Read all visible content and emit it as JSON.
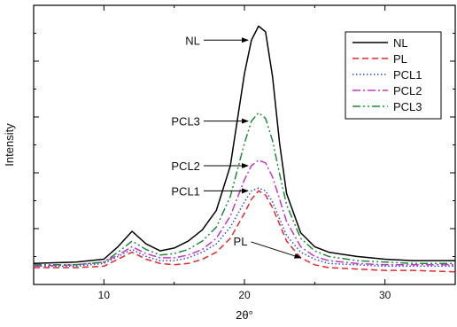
{
  "chart_data": {
    "type": "line",
    "xlabel": "2θ°",
    "ylabel": "Intensity",
    "xlim": [
      5,
      35
    ],
    "ylim": [
      0,
      100
    ],
    "x_ticks": [
      10,
      20,
      30
    ],
    "x_tick_labels": [
      "10",
      "20",
      "30"
    ],
    "y_tick_labels_shown": false,
    "grid": false,
    "legend_position": "top-right",
    "legend": [
      "NL",
      "PL",
      "PCL1",
      "PCL2",
      "PCL3"
    ],
    "series": [
      {
        "name": "NL",
        "color": "#000000",
        "dash": "solid",
        "x": [
          5,
          8,
          10,
          11,
          12,
          13,
          14,
          15,
          16,
          17,
          18,
          19,
          20,
          20.5,
          21,
          21.5,
          22,
          22.5,
          23,
          24,
          25,
          26,
          28,
          30,
          32,
          35
        ],
        "y": [
          5,
          5.5,
          6.5,
          11,
          16.5,
          12,
          9.5,
          10.5,
          13,
          17,
          24,
          40,
          73,
          85,
          90,
          88,
          72,
          48,
          30,
          16,
          11,
          9,
          7.5,
          6.5,
          6,
          6
        ]
      },
      {
        "name": "PL",
        "color": "#e8262d",
        "dash": "7,4",
        "x": [
          5,
          8,
          10,
          11,
          12,
          13,
          14,
          15,
          16,
          17,
          18,
          19,
          20,
          20.5,
          21,
          21.5,
          22,
          22.5,
          23,
          24,
          25,
          26,
          28,
          30,
          32,
          35
        ],
        "y": [
          3.5,
          3.5,
          4,
          6.5,
          9,
          6.5,
          5,
          4.5,
          5,
          6.5,
          9,
          14,
          23,
          28,
          31,
          29.5,
          25,
          19,
          13,
          7,
          4.5,
          3.5,
          3,
          2.5,
          2.5,
          2
        ]
      },
      {
        "name": "PCL1",
        "color": "#2d4bd1",
        "dash": "1.5,2.5",
        "x": [
          5,
          8,
          10,
          11,
          12,
          13,
          14,
          15,
          16,
          17,
          18,
          19,
          20,
          20.5,
          21,
          21.5,
          22,
          22.5,
          23,
          24,
          25,
          26,
          28,
          30,
          32,
          35
        ],
        "y": [
          4,
          4,
          5,
          7.5,
          10,
          7.5,
          6,
          6,
          7,
          9,
          12,
          18,
          27,
          31,
          32,
          31,
          27,
          21,
          15,
          9,
          6.5,
          5,
          4.5,
          4,
          4,
          4
        ]
      },
      {
        "name": "PCL2",
        "color": "#c238c2",
        "dash": "9,3,2,3",
        "x": [
          5,
          8,
          10,
          11,
          12,
          13,
          14,
          15,
          16,
          17,
          18,
          19,
          20,
          20.5,
          21,
          21.5,
          22,
          22.5,
          23,
          24,
          25,
          26,
          28,
          30,
          32,
          35
        ],
        "y": [
          4,
          4.5,
          5.5,
          8,
          11,
          8.5,
          7,
          7,
          8,
          10,
          14,
          22,
          35,
          40,
          42,
          41,
          36,
          28,
          20,
          11,
          7.5,
          6,
          5,
          4.5,
          4.5,
          4.5
        ]
      },
      {
        "name": "PCL3",
        "color": "#1e8a3c",
        "dash": "9,3,2,3,2,3",
        "x": [
          5,
          8,
          10,
          11,
          12,
          13,
          14,
          15,
          16,
          17,
          18,
          19,
          20,
          20.5,
          21,
          21.5,
          22,
          22.5,
          23,
          24,
          25,
          26,
          28,
          30,
          32,
          35
        ],
        "y": [
          4.5,
          4.5,
          5.5,
          9,
          13,
          10,
          8,
          8.5,
          10,
          13,
          18,
          29,
          48,
          56,
          59,
          57,
          49,
          37,
          26,
          14,
          9.5,
          7.5,
          6,
          5.5,
          5,
          5
        ]
      }
    ],
    "annotations": [
      {
        "label": "NL",
        "series": "NL",
        "x": 20.5
      },
      {
        "label": "PCL3",
        "series": "PCL3",
        "x": 20.5
      },
      {
        "label": "PCL2",
        "series": "PCL2",
        "x": 20.5
      },
      {
        "label": "PCL1",
        "series": "PCL1",
        "x": 20.5
      },
      {
        "label": "PL",
        "series": "PL",
        "x": 24
      }
    ]
  }
}
